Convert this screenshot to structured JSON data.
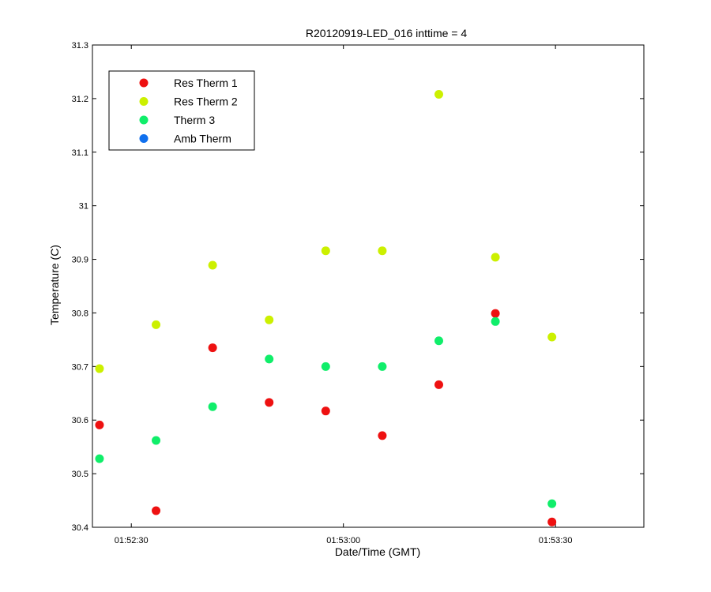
{
  "chart_data": {
    "type": "scatter",
    "title": "R20120919-LED_016 inttime = 4",
    "xlabel": "Date/Time (GMT)",
    "ylabel": "Temperature (C)",
    "x_unit": "seconds",
    "xlim": [
      -5.5,
      72.5
    ],
    "ylim": [
      30.4,
      31.3
    ],
    "x_ticks": [
      {
        "value": 0,
        "label": "01:52:30"
      },
      {
        "value": 30,
        "label": "01:53:00"
      },
      {
        "value": 60,
        "label": "01:53:30"
      }
    ],
    "y_ticks": [
      {
        "value": 30.4,
        "label": "30.4"
      },
      {
        "value": 30.5,
        "label": "30.5"
      },
      {
        "value": 30.6,
        "label": "30.6"
      },
      {
        "value": 30.7,
        "label": "30.7"
      },
      {
        "value": 30.8,
        "label": "30.8"
      },
      {
        "value": 30.9,
        "label": "30.9"
      },
      {
        "value": 31.0,
        "label": "31"
      },
      {
        "value": 31.1,
        "label": "31.1"
      },
      {
        "value": 31.2,
        "label": "31.2"
      },
      {
        "value": 31.3,
        "label": "31.3"
      }
    ],
    "x": [
      -4.5,
      3.5,
      11.5,
      19.5,
      27.5,
      35.5,
      43.5,
      51.5,
      59.5
    ],
    "x_labels": [
      "01:52:25.5",
      "01:52:33.5",
      "01:52:41.5",
      "01:52:49.5",
      "01:52:57.5",
      "01:53:05.5",
      "01:53:13.5",
      "01:53:21.5",
      "01:53:29.5"
    ],
    "series": [
      {
        "name": "Res Therm 1",
        "color": "#ee1111",
        "values": [
          30.591,
          30.431,
          30.735,
          30.633,
          30.617,
          30.571,
          30.666,
          30.799,
          30.41
        ]
      },
      {
        "name": "Res Therm 2",
        "color": "#ccf000",
        "values": [
          30.696,
          30.778,
          30.889,
          30.787,
          30.916,
          30.916,
          31.208,
          30.904,
          30.755
        ]
      },
      {
        "name": "Therm 3",
        "color": "#10ee6a",
        "values": [
          30.528,
          30.562,
          30.625,
          30.714,
          30.7,
          30.7,
          30.748,
          30.784,
          30.444
        ]
      },
      {
        "name": "Amb Therm",
        "color": "#1070ee",
        "values": []
      }
    ],
    "legend_position": "top-left",
    "grid": false
  }
}
